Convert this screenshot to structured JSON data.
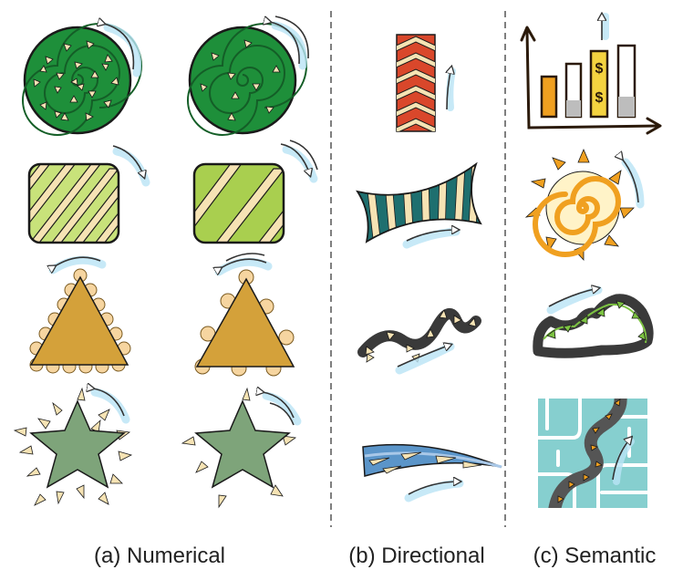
{
  "captions": {
    "numerical": "(a) Numerical",
    "directional": "(b) Directional",
    "semantic": "(c) Semantic"
  },
  "chart_labels": {
    "dollar_sign": "$"
  },
  "colors": {
    "circle_green": "#1e8f3a",
    "square_lime": "#a9cf4f",
    "triangle_ochre": "#d4a13a",
    "star_sage": "#7ea47a",
    "chevron_red": "#d9472b",
    "wave_teal": "#1e6f6f",
    "road_dark": "#3a3a3a",
    "sun_orange": "#f0a020",
    "map_teal": "#86cfcf",
    "stream_blue": "#5b95c9",
    "cream": "#f6e3b4",
    "arrow_blue": "#9fd7f0"
  },
  "icons": [
    "rotation-arrow-icon",
    "up-arrow-icon",
    "motion-arrow-icon"
  ]
}
